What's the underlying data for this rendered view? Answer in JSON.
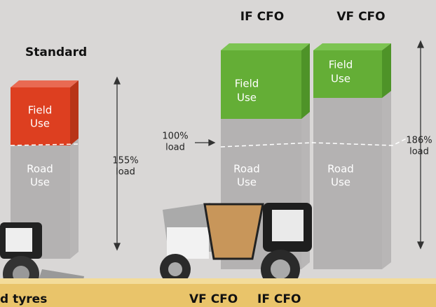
{
  "columns": [
    {
      "name": "Standard",
      "field": [
        "Field",
        "Use"
      ],
      "road": [
        "Road",
        "Use"
      ]
    },
    {
      "name": "IF CFO",
      "field": [
        "Field",
        "Use"
      ],
      "road": [
        "Road",
        "Use"
      ]
    },
    {
      "name": "VF CFO",
      "field": [
        "Field",
        "Use"
      ],
      "road": [
        "Road",
        "Use"
      ]
    }
  ],
  "annotations": [
    {
      "lines": [
        "155%",
        "load"
      ]
    },
    {
      "lines": [
        "100%",
        "load"
      ]
    },
    {
      "lines": [
        "186%",
        "load"
      ]
    }
  ],
  "bottom_labels": [
    "d tyres",
    "VF CFO",
    "IF CFO"
  ]
}
